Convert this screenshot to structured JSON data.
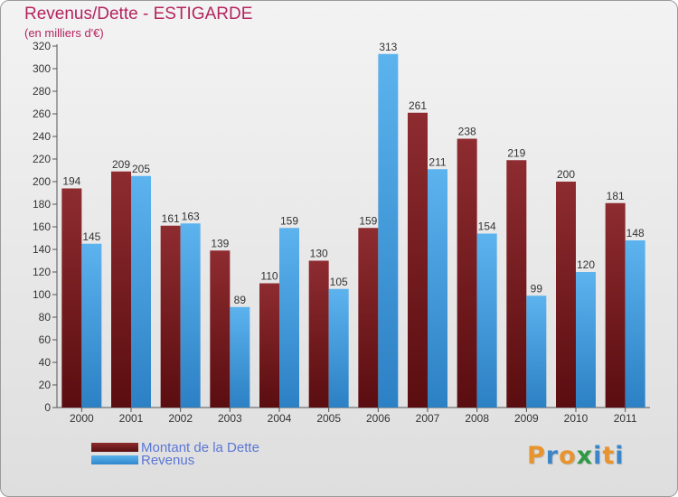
{
  "chart_data": {
    "type": "bar",
    "title": "Revenus/Dette - ESTIGARDE",
    "subtitle": "(en milliers d'€)",
    "categories": [
      "2000",
      "2001",
      "2002",
      "2003",
      "2004",
      "2005",
      "2006",
      "2007",
      "2008",
      "2009",
      "2010",
      "2011"
    ],
    "series": [
      {
        "name": "Montant de la Dette",
        "values": [
          194,
          209,
          161,
          139,
          110,
          130,
          159,
          261,
          238,
          219,
          200,
          181
        ],
        "color": "#7d1f22"
      },
      {
        "name": "Revenus",
        "values": [
          145,
          205,
          163,
          89,
          159,
          105,
          313,
          211,
          154,
          99,
          120,
          148
        ],
        "color": "#4fa6e4"
      }
    ],
    "ylim": [
      0,
      320
    ],
    "yticks": [
      0,
      20,
      40,
      60,
      80,
      100,
      120,
      140,
      160,
      180,
      200,
      220,
      240,
      260,
      280,
      300,
      320
    ],
    "grid": false,
    "legend_position": "bottom-left",
    "data_labels": true
  },
  "logo": {
    "letters": [
      {
        "char": "P",
        "color": "#e8932c"
      },
      {
        "char": "r",
        "color": "#3a86c8"
      },
      {
        "char": "o",
        "color": "#e8932c"
      },
      {
        "char": "x",
        "color": "#2f9a46"
      },
      {
        "char": "i",
        "color": "#3a86c8"
      },
      {
        "char": "t",
        "color": "#e8932c"
      },
      {
        "char": "i",
        "color": "#3a86c8"
      }
    ]
  }
}
